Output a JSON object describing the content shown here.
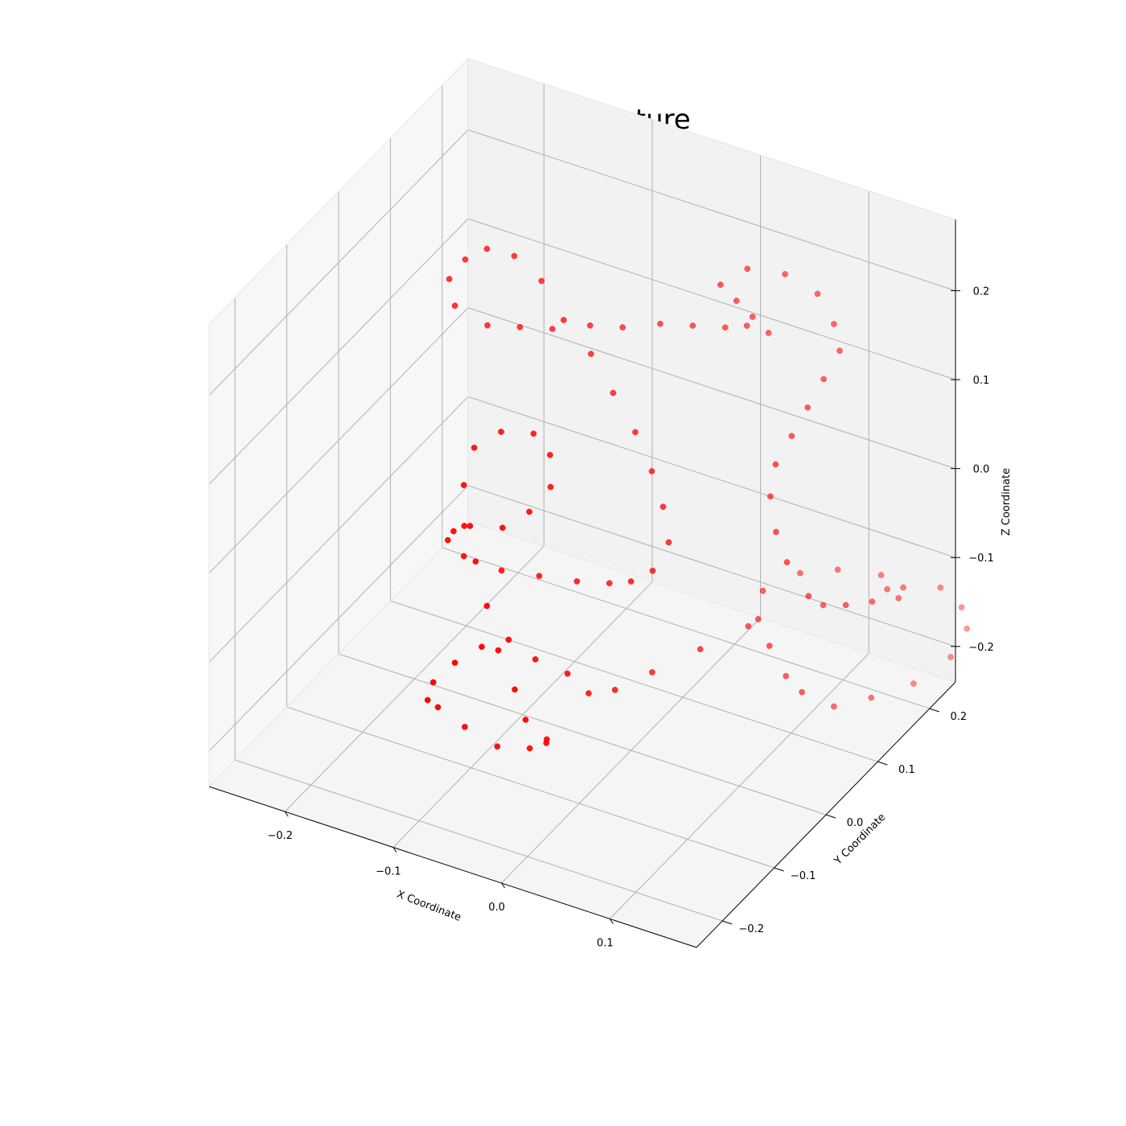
{
  "chart_data": {
    "type": "scatter",
    "projection": "3d",
    "title": "ecDNA Structure",
    "xlabel": "X Coordinate",
    "ylabel": "Y Coordinate",
    "zlabel": "Z Coordinate",
    "xlim": [
      -0.27,
      0.18
    ],
    "ylim": [
      -0.25,
      0.25
    ],
    "zlim": [
      -0.24,
      0.28
    ],
    "x_ticks": [
      -0.2,
      -0.1,
      0.0,
      0.1
    ],
    "x_tick_labels": [
      "−0.2",
      "−0.1",
      "0.0",
      "0.1"
    ],
    "y_ticks": [
      -0.2,
      -0.1,
      0.0,
      0.1,
      0.2
    ],
    "y_tick_labels": [
      "−0.2",
      "−0.1",
      "0.0",
      "0.1",
      "0.2"
    ],
    "z_ticks": [
      -0.2,
      -0.1,
      0.0,
      0.1,
      0.2
    ],
    "z_tick_labels": [
      "−0.2",
      "−0.1",
      "0.0",
      "0.1",
      "0.2"
    ],
    "grid": true,
    "marker_color": "#ff0000",
    "pane_colors": {
      "left": "#f7f7f7",
      "back": "#f2f2f2",
      "floor": "#f5f5f5"
    },
    "series": [
      {
        "points": [
          [
            0.06,
            0.14,
            0.17
          ],
          [
            0.05,
            0.13,
            0.19
          ],
          [
            0.04,
            0.12,
            0.21
          ],
          [
            0.03,
            0.11,
            0.23
          ],
          [
            0.05,
            0.12,
            0.25
          ],
          [
            0.08,
            0.13,
            0.25
          ],
          [
            0.11,
            0.13,
            0.24
          ],
          [
            0.13,
            0.12,
            0.22
          ],
          [
            0.14,
            0.11,
            0.2
          ],
          [
            0.13,
            0.1,
            0.17
          ],
          [
            0.12,
            0.09,
            0.14
          ],
          [
            0.11,
            0.08,
            0.11
          ],
          [
            0.1,
            0.07,
            0.08
          ],
          [
            0.1,
            0.06,
            0.05
          ],
          [
            0.11,
            0.05,
            0.02
          ],
          [
            0.12,
            0.05,
            -0.01
          ],
          [
            0.14,
            0.05,
            -0.04
          ],
          [
            0.16,
            0.08,
            -0.06
          ],
          [
            0.17,
            0.11,
            -0.07
          ],
          [
            0.18,
            0.14,
            -0.08
          ],
          [
            0.17,
            0.17,
            -0.09
          ],
          [
            0.14,
            0.19,
            -0.1
          ],
          [
            0.1,
            0.19,
            -0.11
          ],
          [
            0.07,
            0.18,
            -0.12
          ],
          [
            0.05,
            0.15,
            -0.13
          ],
          [
            0.06,
            0.12,
            -0.14
          ],
          [
            0.08,
            0.1,
            -0.15
          ],
          [
            0.1,
            0.09,
            -0.17
          ],
          [
            0.11,
            0.1,
            -0.19
          ],
          [
            0.13,
            0.12,
            -0.21
          ],
          [
            0.15,
            0.15,
            -0.21
          ],
          [
            0.17,
            0.19,
            -0.21
          ],
          [
            0.19,
            0.22,
            -0.19
          ],
          [
            0.2,
            0.23,
            -0.16
          ],
          [
            0.2,
            0.22,
            -0.13
          ],
          [
            0.19,
            0.2,
            -0.1
          ],
          [
            0.16,
            0.16,
            -0.09
          ],
          [
            0.12,
            0.12,
            -0.1
          ],
          [
            0.07,
            0.08,
            -0.12
          ],
          [
            0.04,
            0.05,
            -0.14
          ],
          [
            0.01,
            0.02,
            -0.16
          ],
          [
            -0.01,
            -0.01,
            -0.17
          ],
          [
            -0.02,
            -0.04,
            -0.16
          ],
          [
            -0.03,
            -0.06,
            -0.13
          ],
          [
            -0.05,
            -0.08,
            -0.11
          ],
          [
            -0.07,
            -0.09,
            -0.09
          ],
          [
            -0.09,
            -0.1,
            -0.1
          ],
          [
            -0.11,
            -0.11,
            -0.12
          ],
          [
            -0.13,
            -0.11,
            -0.15
          ],
          [
            -0.14,
            -0.1,
            -0.18
          ],
          [
            -0.14,
            -0.08,
            -0.2
          ],
          [
            -0.12,
            -0.07,
            -0.22
          ],
          [
            -0.09,
            -0.07,
            -0.23
          ],
          [
            -0.06,
            -0.07,
            -0.22
          ],
          [
            -0.04,
            -0.08,
            -0.2
          ],
          [
            -0.03,
            -0.1,
            -0.18
          ],
          [
            -0.04,
            -0.12,
            -0.15
          ],
          [
            -0.05,
            -0.12,
            -0.12
          ],
          [
            -0.07,
            -0.11,
            -0.09
          ],
          [
            -0.09,
            -0.09,
            -0.06
          ],
          [
            -0.11,
            -0.07,
            -0.03
          ],
          [
            -0.13,
            -0.05,
            -0.01
          ],
          [
            -0.14,
            -0.03,
            0.02
          ],
          [
            -0.14,
            -0.01,
            0.05
          ],
          [
            -0.12,
            0.0,
            0.07
          ],
          [
            -0.09,
            0.0,
            0.08
          ],
          [
            -0.07,
            -0.01,
            0.07
          ],
          [
            -0.06,
            -0.03,
            0.05
          ],
          [
            -0.07,
            -0.05,
            0.03
          ],
          [
            -0.09,
            -0.06,
            0.01
          ],
          [
            -0.12,
            -0.06,
            0.0
          ],
          [
            -0.14,
            -0.05,
            -0.02
          ],
          [
            -0.15,
            -0.04,
            -0.04
          ],
          [
            -0.14,
            -0.03,
            -0.06
          ],
          [
            -0.11,
            -0.02,
            -0.07
          ],
          [
            -0.08,
            -0.01,
            -0.07
          ],
          [
            -0.05,
            0.0,
            -0.07
          ],
          [
            -0.02,
            0.0,
            -0.06
          ],
          [
            0.0,
            0.0,
            -0.05
          ],
          [
            0.02,
            0.0,
            -0.03
          ],
          [
            0.03,
            0.01,
            0.0
          ],
          [
            0.02,
            0.02,
            0.03
          ],
          [
            0.0,
            0.04,
            0.05
          ],
          [
            -0.02,
            0.05,
            0.08
          ],
          [
            -0.05,
            0.07,
            0.1
          ],
          [
            -0.08,
            0.09,
            0.12
          ],
          [
            -0.11,
            0.1,
            0.14
          ],
          [
            -0.14,
            0.12,
            0.16
          ],
          [
            -0.17,
            0.13,
            0.17
          ],
          [
            -0.2,
            0.14,
            0.16
          ],
          [
            -0.22,
            0.14,
            0.14
          ],
          [
            -0.23,
            0.13,
            0.12
          ],
          [
            -0.22,
            0.12,
            0.1
          ],
          [
            -0.19,
            0.12,
            0.09
          ],
          [
            -0.16,
            0.12,
            0.1
          ],
          [
            -0.13,
            0.12,
            0.11
          ],
          [
            -0.1,
            0.13,
            0.12
          ],
          [
            -0.07,
            0.13,
            0.13
          ],
          [
            -0.04,
            0.14,
            0.14
          ],
          [
            -0.01,
            0.14,
            0.15
          ],
          [
            0.02,
            0.14,
            0.16
          ],
          [
            0.04,
            0.14,
            0.17
          ]
        ]
      }
    ]
  }
}
